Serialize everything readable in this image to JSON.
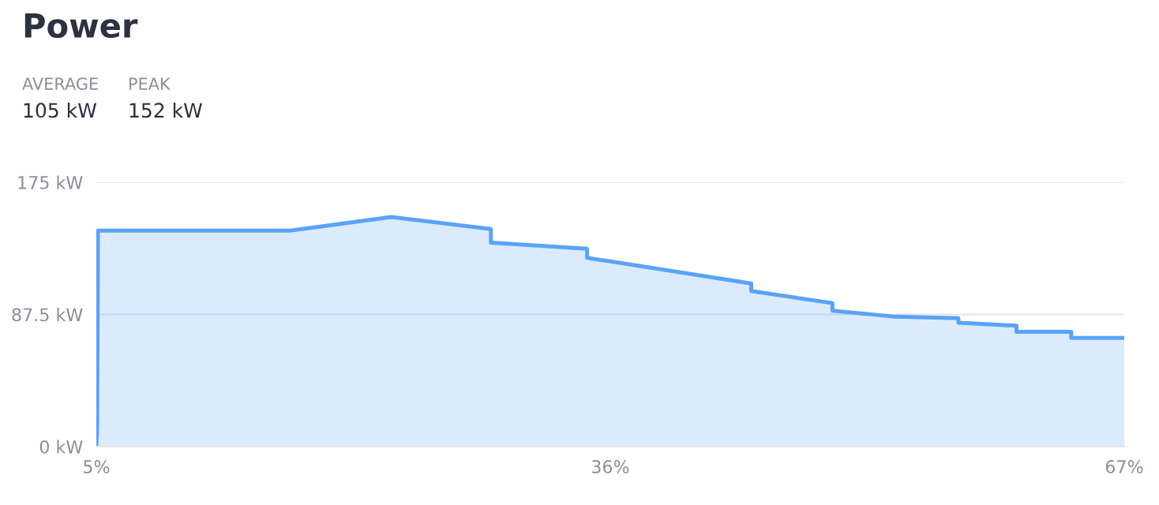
{
  "chart_data": {
    "type": "area",
    "title": "Power",
    "annotations": [
      "AVERAGE",
      "105 kW",
      "PEAK",
      "152 kW"
    ],
    "x": [
      5,
      5.05,
      5.1,
      16.7,
      22.8,
      28.8,
      28.8,
      34.6,
      34.6,
      44.5,
      44.5,
      49.4,
      49.4,
      53.2,
      57.0,
      57.0,
      60.5,
      60.5,
      63.8,
      63.8,
      67.0
    ],
    "series": [
      {
        "color": "#5aa3f7",
        "values": [
          0,
          13,
          143,
          143,
          152,
          144,
          135,
          131,
          125,
          108,
          103,
          95,
          90,
          86,
          85,
          82,
          80,
          76,
          76,
          72,
          72
        ]
      }
    ],
    "xlim": [
      5,
      67
    ],
    "ylim": [
      0,
      175
    ],
    "xticks": [
      {
        "value": 5,
        "label": "5%"
      },
      {
        "value": 36,
        "label": "36%"
      },
      {
        "value": 67,
        "label": "67%"
      }
    ],
    "yticks": [
      {
        "value": 0,
        "label": "0 kW"
      },
      {
        "value": 87.5,
        "label": "87.5 kW"
      },
      {
        "value": 175,
        "label": "175 kW"
      }
    ],
    "grid": "y",
    "legend": false,
    "marker": "none",
    "line_style": "solid"
  }
}
